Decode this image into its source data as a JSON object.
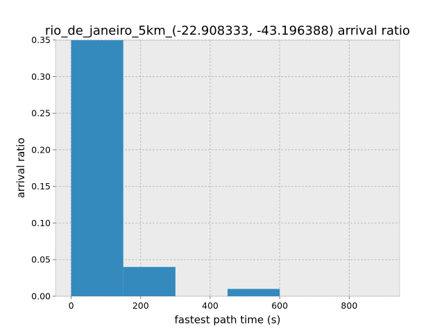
{
  "chart_data": {
    "type": "bar",
    "title": "rio_de_janeiro_5km_(-22.908333, -43.196388) arrival ratio",
    "xlabel": "fastest path time (s)",
    "ylabel": "arrival ratio",
    "xlim": [
      -45,
      945
    ],
    "ylim": [
      0,
      0.3497
    ],
    "xticks": [
      0,
      200,
      400,
      600,
      800
    ],
    "xtick_labels": [
      "0",
      "200",
      "400",
      "600",
      "800"
    ],
    "yticks": [
      0.0,
      0.05,
      0.1,
      0.15,
      0.2,
      0.25,
      0.3,
      0.35
    ],
    "ytick_labels": [
      "0.00",
      "0.05",
      "0.10",
      "0.15",
      "0.20",
      "0.25",
      "0.30",
      "0.35"
    ],
    "grid": true,
    "bar_color": "#348abd",
    "plot_background": "#ebebeb",
    "bins": [
      {
        "x0": 0,
        "x1": 150,
        "value": 0.36
      },
      {
        "x0": 150,
        "x1": 300,
        "value": 0.04
      },
      {
        "x0": 300,
        "x1": 450,
        "value": 0.0
      },
      {
        "x0": 450,
        "x1": 600,
        "value": 0.01
      },
      {
        "x0": 600,
        "x1": 750,
        "value": 0.0
      },
      {
        "x0": 750,
        "x1": 900,
        "value": 0.0
      }
    ]
  }
}
